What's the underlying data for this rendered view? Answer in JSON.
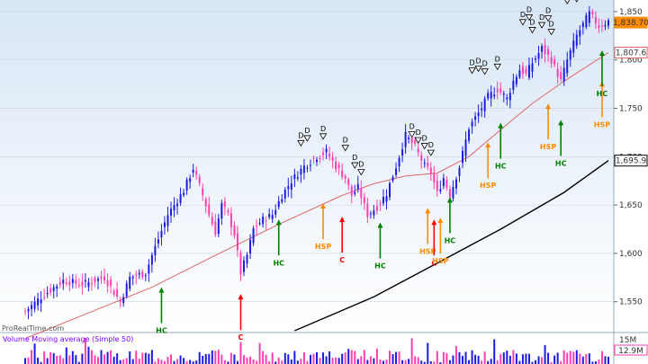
{
  "chart_data": {
    "type": "candlestick",
    "price_axis": {
      "ticks": [
        1550,
        1600,
        1650,
        1700,
        1750,
        1800,
        1850
      ],
      "tick_labels": [
        "1,550",
        "1,600",
        "1,650",
        "1,700",
        "1,750",
        "1,800",
        "1,850"
      ],
      "range": [
        1520,
        1862
      ]
    },
    "price_badges": [
      {
        "label": "1,838.70",
        "value": 1838.7,
        "color": "#ff8c00",
        "text_color": "#000000"
      },
      {
        "label": "1,807.6",
        "value": 1807.6,
        "color": "#e06666",
        "text_color": "#e06666"
      },
      {
        "label": "1,695.9",
        "value": 1695.9,
        "color": "#000000",
        "text_color": "#000000"
      }
    ],
    "anchors": [
      [
        0,
        1540
      ],
      [
        5,
        1555
      ],
      [
        12,
        1572
      ],
      [
        18,
        1568
      ],
      [
        25,
        1575
      ],
      [
        30,
        1550
      ],
      [
        33,
        1575
      ],
      [
        38,
        1580
      ],
      [
        40,
        1598
      ],
      [
        45,
        1640
      ],
      [
        50,
        1665
      ],
      [
        53,
        1688
      ],
      [
        56,
        1660
      ],
      [
        58,
        1640
      ],
      [
        60,
        1622
      ],
      [
        62,
        1650
      ],
      [
        64,
        1640
      ],
      [
        66,
        1620
      ],
      [
        68,
        1580
      ],
      [
        70,
        1598
      ],
      [
        72,
        1625
      ],
      [
        75,
        1635
      ],
      [
        78,
        1640
      ],
      [
        81,
        1660
      ],
      [
        84,
        1675
      ],
      [
        88,
        1690
      ],
      [
        92,
        1700
      ],
      [
        95,
        1705
      ],
      [
        98,
        1690
      ],
      [
        101,
        1678
      ],
      [
        103,
        1660
      ],
      [
        105,
        1668
      ],
      [
        108,
        1640
      ],
      [
        111,
        1648
      ],
      [
        114,
        1662
      ],
      [
        117,
        1690
      ],
      [
        120,
        1722
      ],
      [
        123,
        1710
      ],
      [
        126,
        1690
      ],
      [
        128,
        1684
      ],
      [
        130,
        1662
      ],
      [
        132,
        1678
      ],
      [
        134,
        1660
      ],
      [
        137,
        1690
      ],
      [
        140,
        1730
      ],
      [
        143,
        1745
      ],
      [
        146,
        1762
      ],
      [
        149,
        1770
      ],
      [
        152,
        1760
      ],
      [
        154,
        1778
      ],
      [
        156,
        1790
      ],
      [
        158,
        1785
      ],
      [
        160,
        1797
      ],
      [
        163,
        1812
      ],
      [
        166,
        1800
      ],
      [
        169,
        1778
      ],
      [
        171,
        1800
      ],
      [
        174,
        1825
      ],
      [
        178,
        1848
      ],
      [
        181,
        1835
      ],
      [
        184,
        1840
      ]
    ],
    "candle_count": 185,
    "moving_average": {
      "name": "Moving average",
      "color": "#e06666",
      "points": [
        [
          0,
          1512
        ],
        [
          40,
          1565
        ],
        [
          60,
          1598
        ],
        [
          80,
          1630
        ],
        [
          100,
          1660
        ],
        [
          110,
          1672
        ],
        [
          120,
          1680
        ],
        [
          130,
          1683
        ],
        [
          140,
          1700
        ],
        [
          150,
          1728
        ],
        [
          160,
          1755
        ],
        [
          170,
          1778
        ],
        [
          184,
          1807.6
        ]
      ]
    },
    "long_average": {
      "color": "#000000",
      "points": [
        [
          85,
          1520
        ],
        [
          110,
          1555
        ],
        [
          130,
          1590
        ],
        [
          150,
          1625
        ],
        [
          170,
          1663
        ],
        [
          184,
          1695.9
        ]
      ]
    },
    "signals": [
      {
        "label": "HC",
        "idx": 43,
        "price": 1565,
        "color": "#008000"
      },
      {
        "label": "C",
        "idx": 68,
        "price": 1558,
        "color": "#ff0000"
      },
      {
        "label": "HC",
        "idx": 80,
        "price": 1635,
        "color": "#008000"
      },
      {
        "label": "HSP",
        "idx": 94,
        "price": 1652,
        "color": "#ff8c00"
      },
      {
        "label": "C",
        "idx": 100,
        "price": 1638,
        "color": "#ff0000"
      },
      {
        "label": "HC",
        "idx": 112,
        "price": 1632,
        "color": "#008000"
      },
      {
        "label": "HSP",
        "idx": 127,
        "price": 1647,
        "color": "#ff8c00"
      },
      {
        "label": "C",
        "idx": 129,
        "price": 1635,
        "color": "#ff0000"
      },
      {
        "label": "HSP",
        "idx": 131,
        "price": 1637,
        "color": "#ff8c00"
      },
      {
        "label": "HC",
        "idx": 134,
        "price": 1658,
        "color": "#008000"
      },
      {
        "label": "HSP",
        "idx": 146,
        "price": 1715,
        "color": "#ff8c00"
      },
      {
        "label": "HC",
        "idx": 150,
        "price": 1735,
        "color": "#008000"
      },
      {
        "label": "HSP",
        "idx": 165,
        "price": 1755,
        "color": "#ff8c00"
      },
      {
        "label": "HC",
        "idx": 169,
        "price": 1738,
        "color": "#008000"
      },
      {
        "label": "HSP",
        "idx": 182,
        "price": 1778,
        "color": "#ff8c00"
      },
      {
        "label": "HC",
        "idx": 182,
        "price": 1810,
        "color": "#008000"
      }
    ],
    "divergence_marks": {
      "label": "D",
      "points": [
        [
          87,
          1713
        ],
        [
          89,
          1718
        ],
        [
          94,
          1720
        ],
        [
          101,
          1708
        ],
        [
          104,
          1690
        ],
        [
          106,
          1683
        ],
        [
          122,
          1722
        ],
        [
          124,
          1716
        ],
        [
          126,
          1710
        ],
        [
          128,
          1703
        ],
        [
          141,
          1788
        ],
        [
          143,
          1790
        ],
        [
          145,
          1787
        ],
        [
          149,
          1792
        ],
        [
          157,
          1838
        ],
        [
          159,
          1843
        ],
        [
          160,
          1830
        ],
        [
          163,
          1835
        ],
        [
          165,
          1842
        ],
        [
          166,
          1828
        ],
        [
          171,
          1860
        ],
        [
          174,
          1862
        ]
      ]
    },
    "watermark": "ProRealTime.com",
    "volume_panel": {
      "label": "Volume Moving average (Simple 50)",
      "axis_labels": [
        "15M"
      ],
      "badge": "12.9M",
      "bar_count": 185
    }
  }
}
